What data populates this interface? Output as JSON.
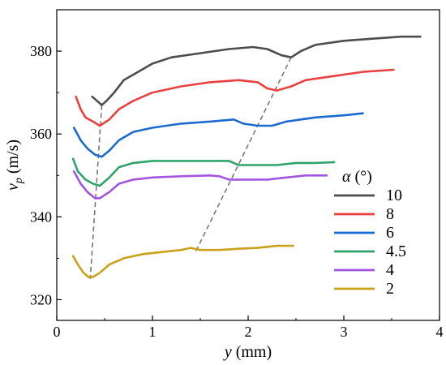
{
  "chart_data": {
    "type": "line",
    "title": "",
    "xlabel": {
      "var": "y",
      "unit": " (mm)"
    },
    "ylabel": {
      "var": "v",
      "sub": "p",
      "unit": " (m/s)"
    },
    "xlim": [
      0,
      4
    ],
    "ylim": [
      315,
      390
    ],
    "xticks": [
      0,
      1,
      2,
      3,
      4
    ],
    "yticks": [
      320,
      340,
      360,
      380
    ],
    "grid": false,
    "legend": {
      "position": "bottom-right",
      "title_var": "α",
      "title_unit": " (°)"
    },
    "series": [
      {
        "name": "10",
        "color": "#4d4d4d",
        "points": [
          [
            0.37,
            369
          ],
          [
            0.42,
            368
          ],
          [
            0.47,
            367
          ],
          [
            0.52,
            368
          ],
          [
            0.6,
            370
          ],
          [
            0.7,
            373
          ],
          [
            0.85,
            375
          ],
          [
            1.0,
            377
          ],
          [
            1.2,
            378.5
          ],
          [
            1.5,
            379.5
          ],
          [
            1.8,
            380.5
          ],
          [
            2.05,
            381
          ],
          [
            2.2,
            380.5
          ],
          [
            2.35,
            379
          ],
          [
            2.45,
            378.5
          ],
          [
            2.55,
            380
          ],
          [
            2.7,
            381.5
          ],
          [
            3.0,
            382.5
          ],
          [
            3.3,
            383
          ],
          [
            3.6,
            383.5
          ],
          [
            3.8,
            383.5
          ]
        ]
      },
      {
        "name": "8",
        "color": "#e8413f",
        "points": [
          [
            0.2,
            369
          ],
          [
            0.25,
            366
          ],
          [
            0.3,
            364
          ],
          [
            0.38,
            363
          ],
          [
            0.45,
            362
          ],
          [
            0.55,
            363.5
          ],
          [
            0.65,
            366
          ],
          [
            0.8,
            368
          ],
          [
            1.0,
            370
          ],
          [
            1.3,
            371.5
          ],
          [
            1.6,
            372.5
          ],
          [
            1.9,
            373
          ],
          [
            2.1,
            372.5
          ],
          [
            2.2,
            371
          ],
          [
            2.3,
            370.5
          ],
          [
            2.45,
            371.5
          ],
          [
            2.6,
            373
          ],
          [
            2.9,
            374
          ],
          [
            3.2,
            375
          ],
          [
            3.52,
            375.5
          ]
        ]
      },
      {
        "name": "6",
        "color": "#1a6ad0",
        "points": [
          [
            0.18,
            361.5
          ],
          [
            0.25,
            358.5
          ],
          [
            0.32,
            356.5
          ],
          [
            0.4,
            355
          ],
          [
            0.47,
            354.5
          ],
          [
            0.55,
            356
          ],
          [
            0.65,
            358.5
          ],
          [
            0.8,
            360.5
          ],
          [
            1.0,
            361.5
          ],
          [
            1.3,
            362.5
          ],
          [
            1.6,
            363
          ],
          [
            1.85,
            363.5
          ],
          [
            1.95,
            362.5
          ],
          [
            2.1,
            362
          ],
          [
            2.25,
            362
          ],
          [
            2.4,
            363
          ],
          [
            2.7,
            364
          ],
          [
            3.0,
            364.5
          ],
          [
            3.2,
            365
          ]
        ]
      },
      {
        "name": "4.5",
        "color": "#2ea36a",
        "points": [
          [
            0.17,
            354
          ],
          [
            0.22,
            351
          ],
          [
            0.3,
            349
          ],
          [
            0.38,
            348
          ],
          [
            0.45,
            347.5
          ],
          [
            0.55,
            349.5
          ],
          [
            0.65,
            352
          ],
          [
            0.8,
            353
          ],
          [
            1.0,
            353.5
          ],
          [
            1.3,
            353.5
          ],
          [
            1.6,
            353.5
          ],
          [
            1.8,
            353.5
          ],
          [
            1.9,
            352.5
          ],
          [
            2.1,
            352.5
          ],
          [
            2.3,
            352.5
          ],
          [
            2.5,
            353
          ],
          [
            2.7,
            353
          ],
          [
            2.9,
            353.2
          ]
        ]
      },
      {
        "name": "4",
        "color": "#a355e0",
        "points": [
          [
            0.18,
            351
          ],
          [
            0.25,
            348
          ],
          [
            0.32,
            346
          ],
          [
            0.4,
            344.5
          ],
          [
            0.45,
            344.5
          ],
          [
            0.55,
            346
          ],
          [
            0.65,
            348
          ],
          [
            0.8,
            349
          ],
          [
            1.0,
            349.5
          ],
          [
            1.3,
            349.8
          ],
          [
            1.6,
            350
          ],
          [
            1.7,
            349.8
          ],
          [
            1.8,
            349
          ],
          [
            2.0,
            349
          ],
          [
            2.2,
            349
          ],
          [
            2.4,
            349.5
          ],
          [
            2.6,
            350
          ],
          [
            2.82,
            350
          ]
        ]
      },
      {
        "name": "2",
        "color": "#c9a11a",
        "points": [
          [
            0.17,
            330.5
          ],
          [
            0.22,
            328.5
          ],
          [
            0.28,
            326.5
          ],
          [
            0.33,
            325.5
          ],
          [
            0.38,
            325.5
          ],
          [
            0.45,
            326.5
          ],
          [
            0.55,
            328.5
          ],
          [
            0.7,
            330
          ],
          [
            0.9,
            331
          ],
          [
            1.1,
            331.5
          ],
          [
            1.3,
            332
          ],
          [
            1.4,
            332.5
          ],
          [
            1.5,
            332
          ],
          [
            1.7,
            332
          ],
          [
            1.9,
            332.3
          ],
          [
            2.1,
            332.5
          ],
          [
            2.3,
            333
          ],
          [
            2.47,
            333
          ]
        ]
      }
    ],
    "annotations": [
      {
        "type": "dashed-line",
        "points": [
          [
            0.47,
            367
          ],
          [
            0.35,
            325
          ]
        ]
      },
      {
        "type": "dashed-line",
        "points": [
          [
            2.45,
            378.5
          ],
          [
            1.45,
            331.5
          ]
        ]
      }
    ]
  }
}
